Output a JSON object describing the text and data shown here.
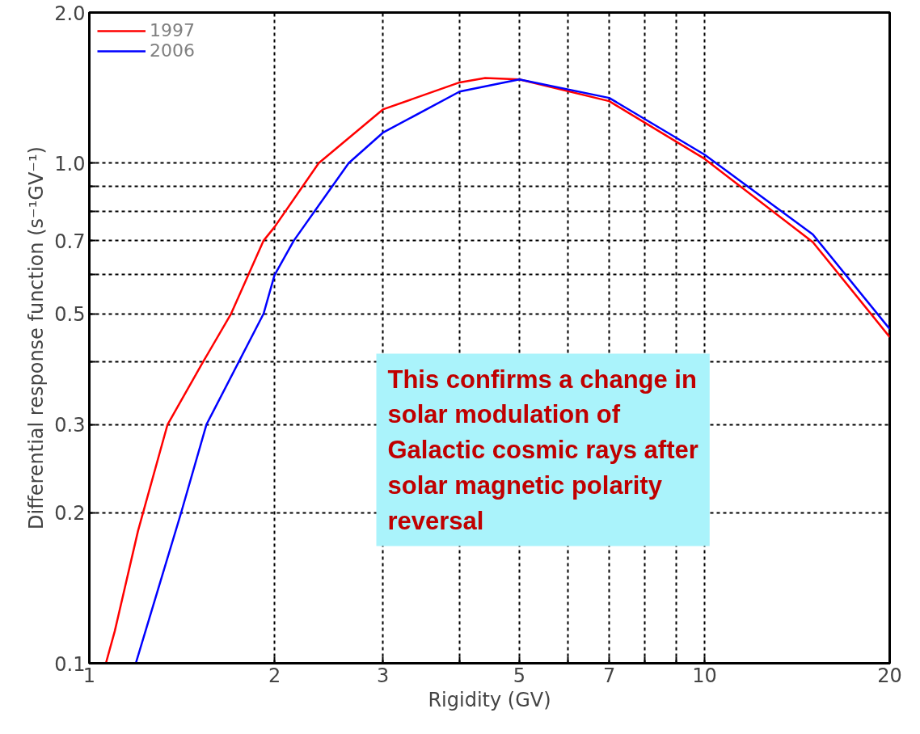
{
  "chart_data": {
    "type": "line",
    "xlabel": "Rigidity (GV)",
    "ylabel": "Differential response function (s⁻¹GV⁻¹)",
    "log": "xy",
    "grid": true,
    "legend": "top left",
    "line_style": "solid",
    "marker": "none",
    "xlim": [
      1,
      20
    ],
    "ylim": [
      0.1,
      2.0
    ],
    "xticks": [
      1,
      2,
      3,
      {
        "value": 4,
        "label": null
      },
      5,
      {
        "value": 6,
        "label": null
      },
      7,
      {
        "value": 8,
        "label": null
      },
      {
        "value": 9,
        "label": null
      },
      10,
      20
    ],
    "yticks": [
      0.1,
      0.2,
      0.3,
      {
        "value": 0.4,
        "label": null
      },
      0.5,
      {
        "value": 0.6,
        "label": null
      },
      0.7,
      {
        "value": 0.8,
        "label": null
      },
      {
        "value": 0.9,
        "label": null
      },
      {
        "value": 1.0,
        "label": "1.0"
      },
      {
        "value": 2.0,
        "label": "2.0"
      }
    ],
    "series": [
      {
        "name": "1997",
        "color": "#ff0000",
        "x": [
          1.064,
          1.1,
          1.2,
          1.34,
          1.53,
          1.7,
          1.92,
          2,
          2.36,
          3,
          4,
          4.4,
          5,
          7,
          10,
          15,
          20
        ],
        "values": [
          0.1,
          0.116,
          0.184,
          0.3,
          0.4,
          0.5,
          0.7,
          0.745,
          1.0,
          1.28,
          1.45,
          1.48,
          1.47,
          1.33,
          1.02,
          0.695,
          0.449
        ]
      },
      {
        "name": "2006",
        "color": "#0000ff",
        "x": [
          1.19,
          1.41,
          1.55,
          1.92,
          2,
          2.15,
          2.64,
          3,
          4,
          5,
          7,
          10,
          15,
          20
        ],
        "values": [
          0.1,
          0.2,
          0.3,
          0.5,
          0.597,
          0.7,
          1.0,
          1.15,
          1.39,
          1.47,
          1.35,
          1.04,
          0.72,
          0.466
        ]
      }
    ],
    "annotations": [
      "This confirms a change in solar modulation of Galactic cosmic rays after solar magnetic polarity reversal"
    ]
  }
}
